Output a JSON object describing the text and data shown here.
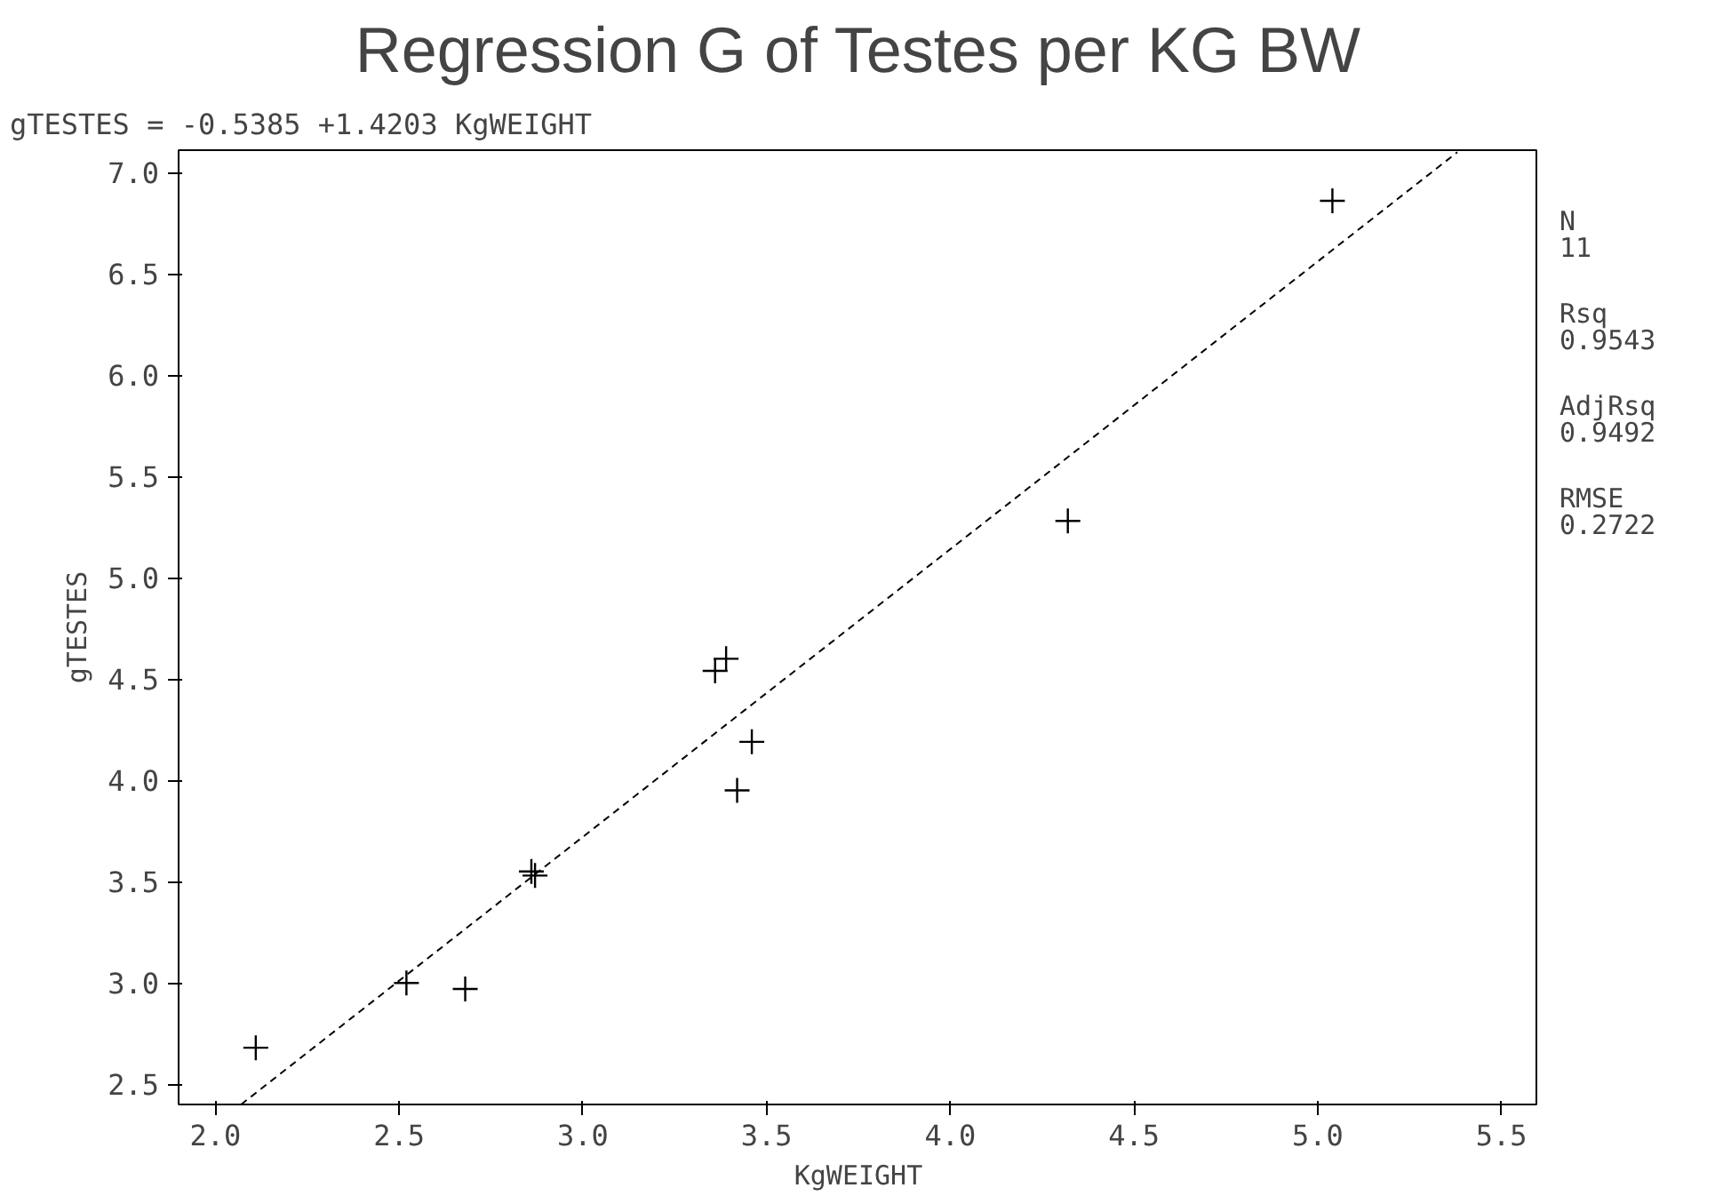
{
  "chart_data": {
    "type": "scatter",
    "title": "Regression G of Testes per KG BW",
    "subtitle": "gTESTES = -0.5385 +1.4203 KgWEIGHT",
    "xlabel": "KgWEIGHT",
    "ylabel": "gTESTES",
    "xlim": [
      1.9,
      5.6
    ],
    "ylim": [
      2.4,
      7.11
    ],
    "xticks": [
      {
        "value": 2,
        "label": "2.0"
      },
      2.5,
      {
        "value": 3,
        "label": "3.0"
      },
      3.5,
      {
        "value": 4,
        "label": "4.0"
      },
      4.5,
      {
        "value": 5,
        "label": "5.0"
      },
      5.5
    ],
    "yticks": [
      2.5,
      {
        "value": 3,
        "label": "3.0"
      },
      3.5,
      {
        "value": 4,
        "label": "4.0"
      },
      4.5,
      {
        "value": 5,
        "label": "5.0"
      },
      5.5,
      {
        "value": 6,
        "label": "6.0"
      },
      6.5,
      {
        "value": 7,
        "label": "7.0"
      }
    ],
    "grid": false,
    "series": [
      {
        "marker": "cross",
        "color": "#000000",
        "x": [
          2.11,
          2.52,
          2.68,
          2.86,
          2.87,
          3.36,
          3.39,
          3.46,
          3.42,
          4.32,
          5.04
        ],
        "values": [
          2.68,
          3.0,
          2.97,
          3.55,
          3.53,
          4.54,
          4.6,
          4.19,
          3.95,
          5.28,
          6.86
        ]
      },
      {
        "type": "line",
        "color": "#000000",
        "line_style": "dashed",
        "x": [
          2.07,
          5.38
        ],
        "values": [
          2.4,
          7.1
        ]
      }
    ],
    "annotations": [
      "N\n11",
      "Rsq\n0.9543",
      "AdjRsq\n0.9492",
      "RMSE\n0.2722"
    ]
  }
}
